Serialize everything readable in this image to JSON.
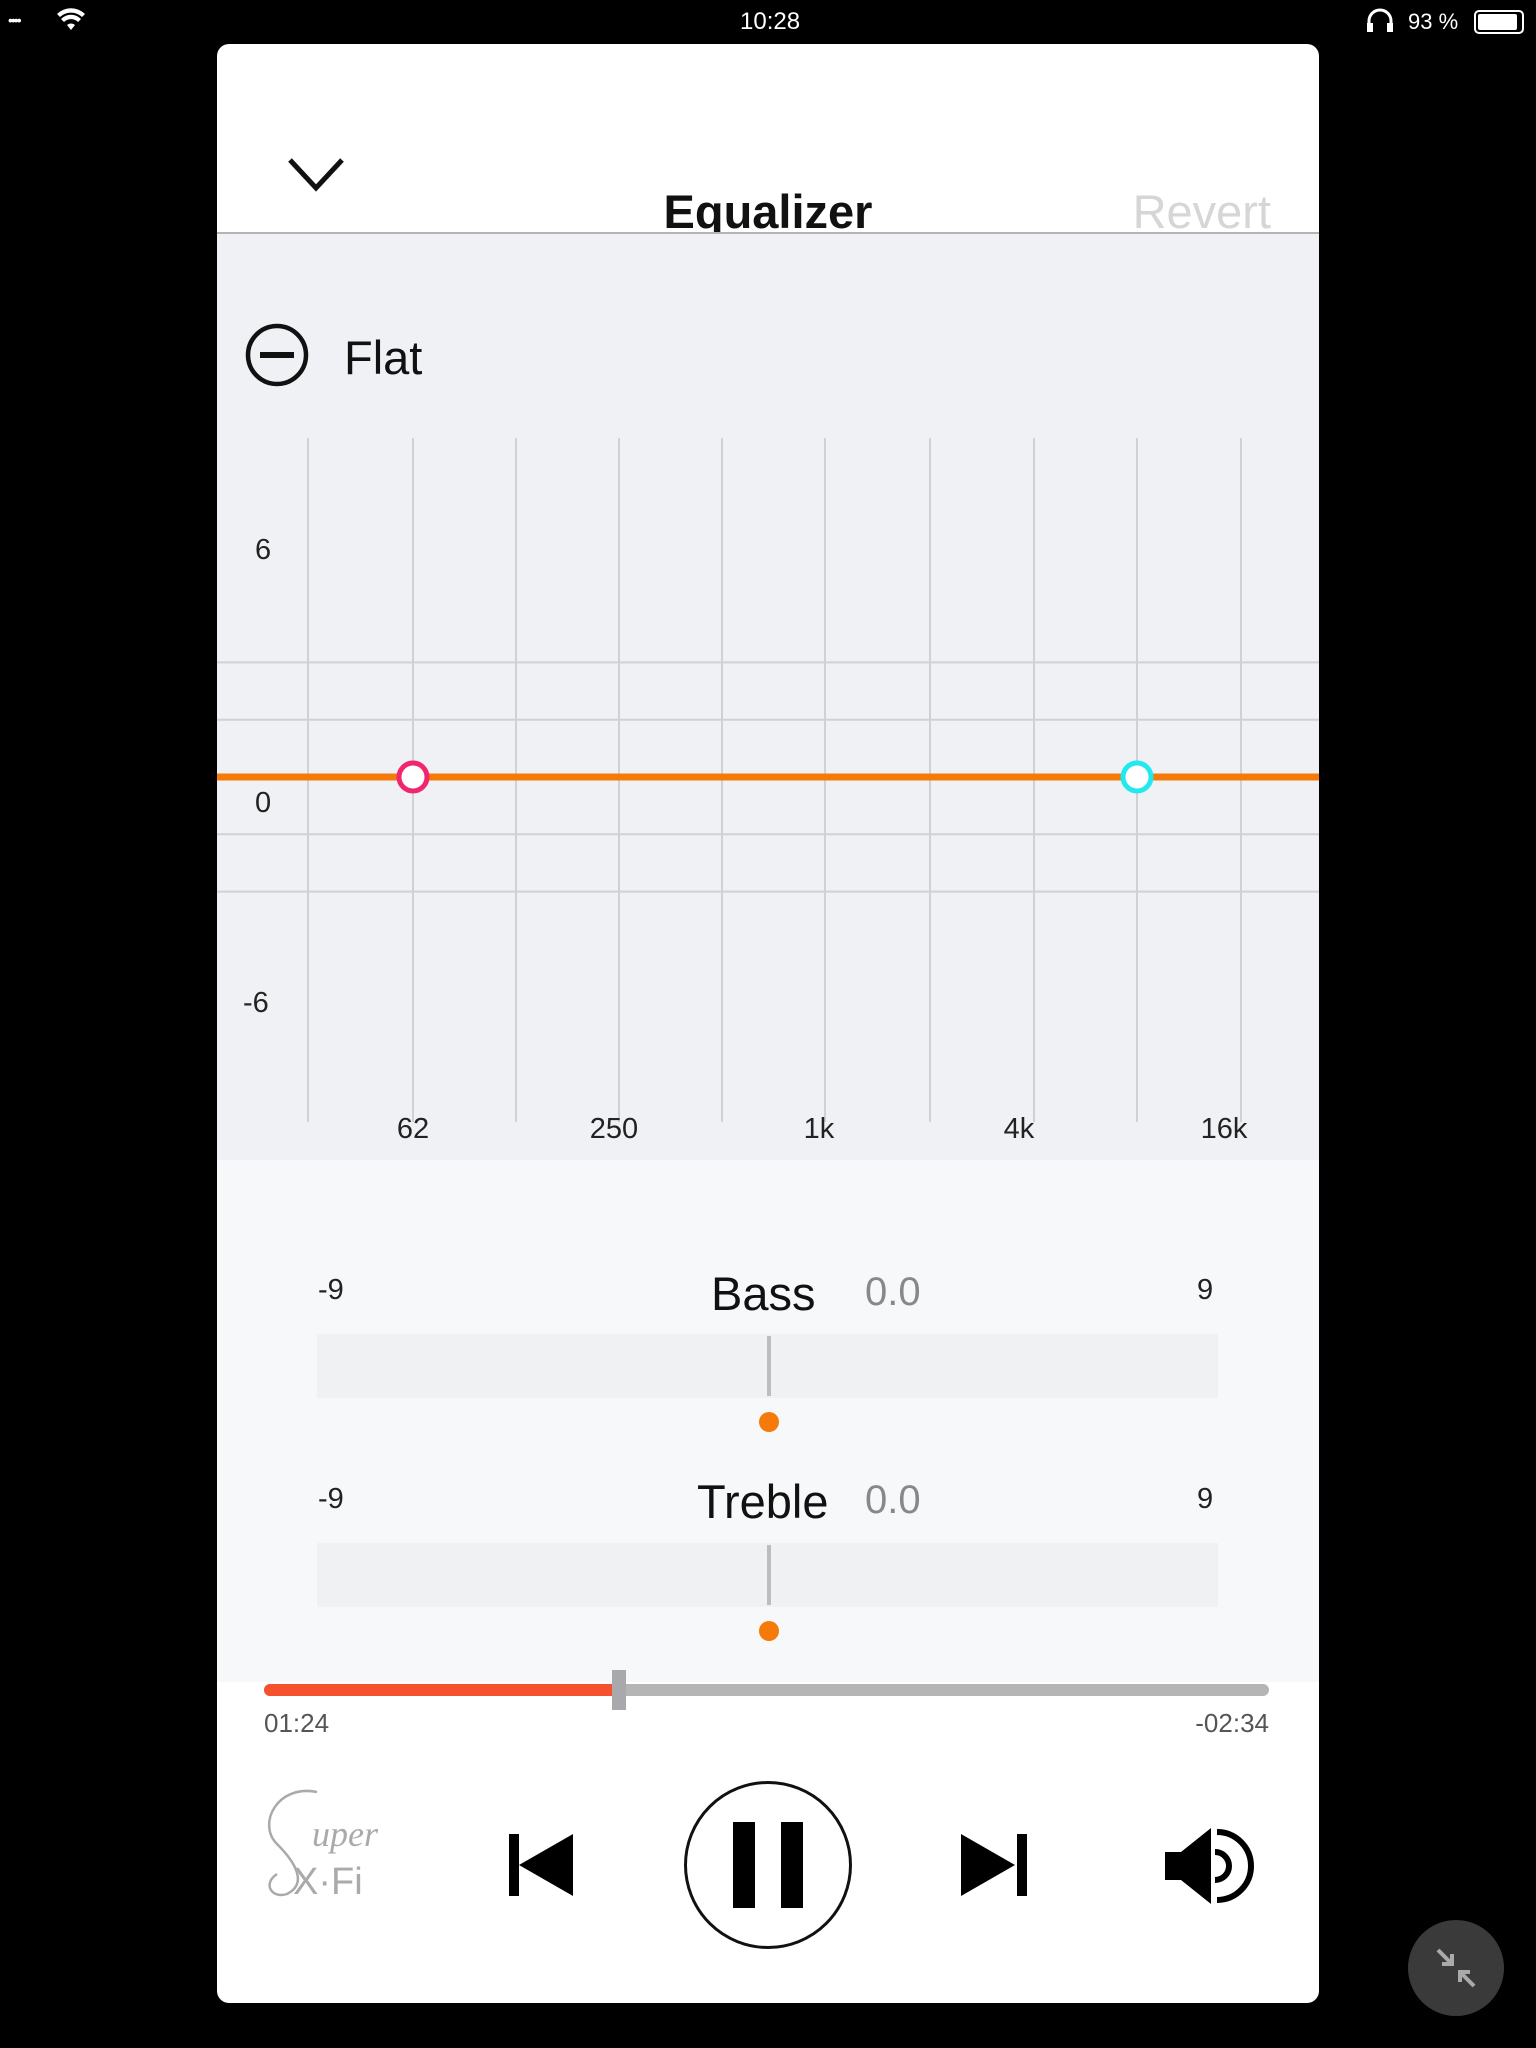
{
  "status_bar": {
    "time": "10:28",
    "battery": "93 %",
    "battery_level_percent": 93
  },
  "header": {
    "title": "Equalizer",
    "revert_label": "Revert",
    "close_icon": "chevron-down-icon"
  },
  "preset": {
    "name": "Flat",
    "icon": "minus-circle-icon"
  },
  "eq_graph": {
    "y_ticks": [
      "6",
      "0",
      "-6"
    ],
    "x_ticks": [
      "62",
      "250",
      "1k",
      "4k",
      "16k"
    ],
    "curve_gain_db": 0,
    "curve_color": "#f57a0a",
    "bass_marker_color": "#f0266e",
    "treble_marker_color": "#22e8f0"
  },
  "bass": {
    "label": "Bass",
    "value": "0.0",
    "min": "-9",
    "max": "9"
  },
  "treble": {
    "label": "Treble",
    "value": "0.0",
    "min": "-9",
    "max": "9"
  },
  "playback": {
    "elapsed": "01:24",
    "remaining": "-02:34",
    "progress_fraction": 0.353,
    "accent": "#f5512f"
  },
  "logo": {
    "text": "Super X-Fi"
  },
  "controls": {
    "prev": "skip-back-icon",
    "pause": "pause-icon",
    "next": "skip-forward-icon",
    "volume": "volume-icon"
  }
}
